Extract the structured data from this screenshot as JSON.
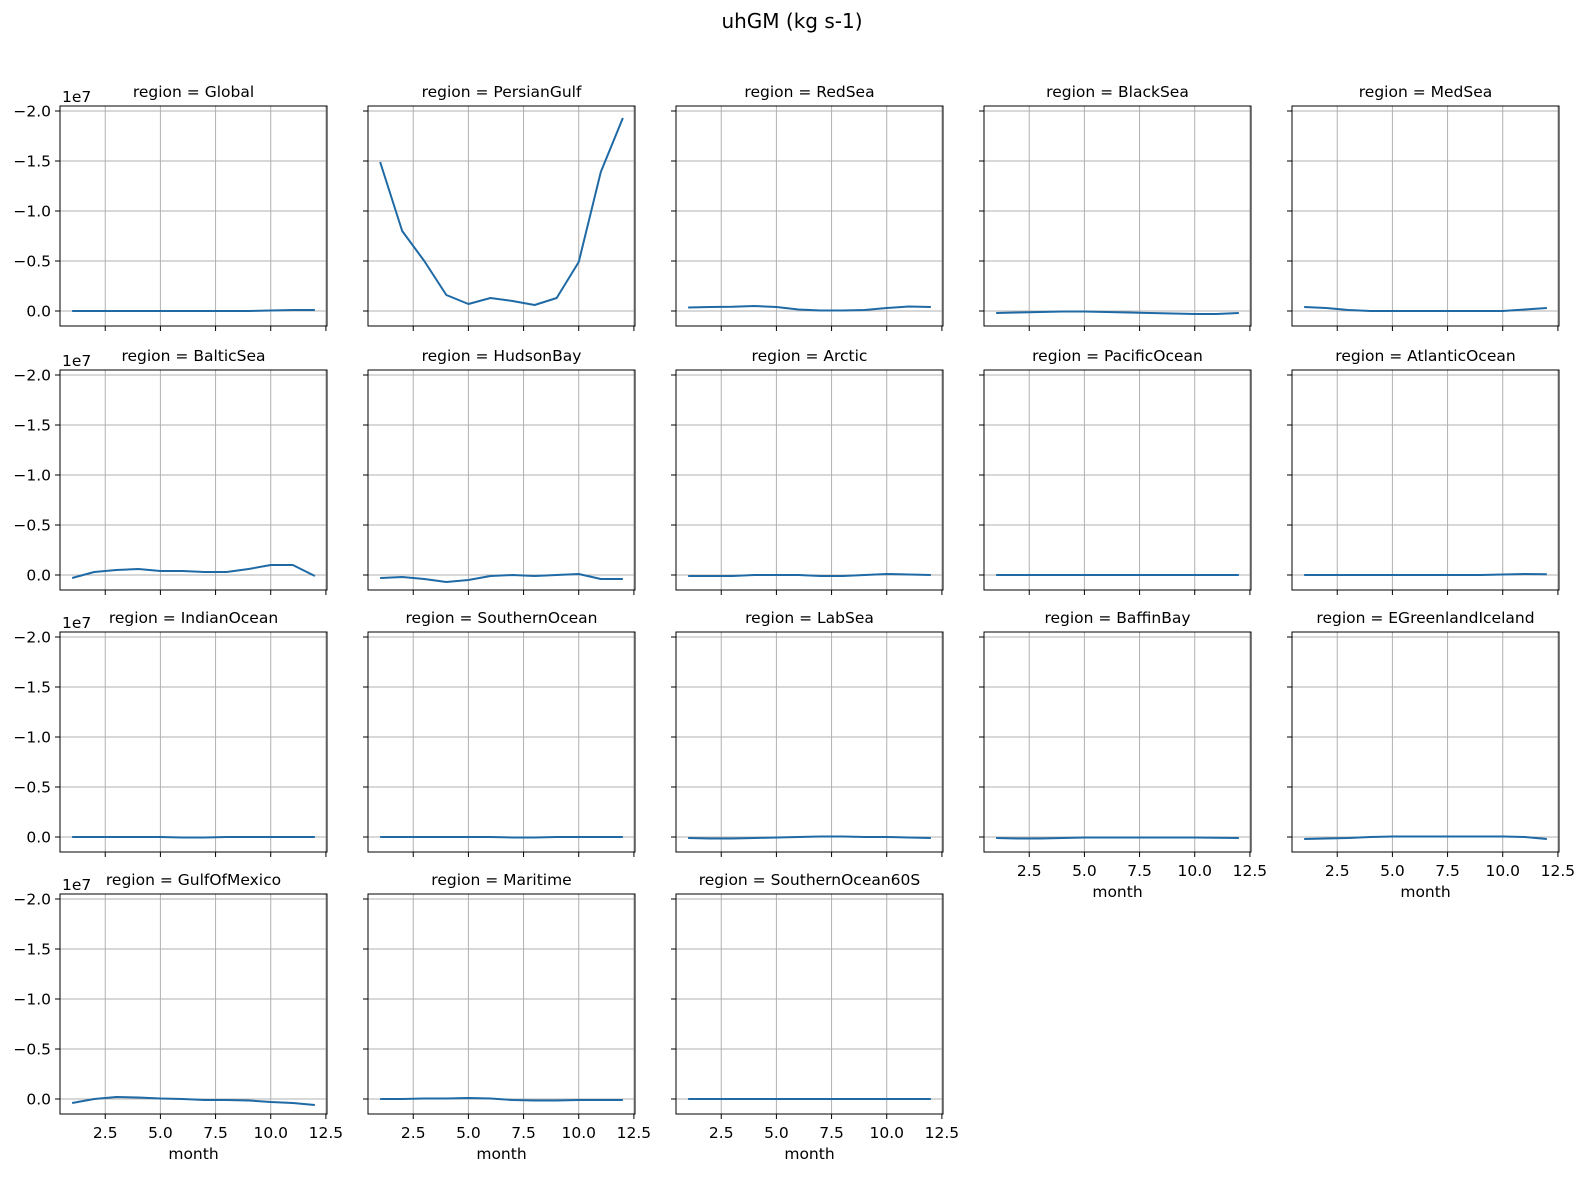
{
  "figure": {
    "title": "uhGM (kg s-1)",
    "offset_label": "1e7",
    "xlabel": "month"
  },
  "colors": {
    "line": "#1f6aa5",
    "grid": "#b0b0b0",
    "axis": "#000000",
    "background": "#ffffff"
  },
  "chart_data": {
    "type": "line",
    "layout": "small-multiples 4x5 facet grid",
    "shared_y": true,
    "shared_x": true,
    "grid": true,
    "y_inverted": true,
    "xlim": [
      0.45,
      12.55
    ],
    "ylim": [
      0.15,
      -2.05
    ],
    "xticks": [
      2.5,
      5.0,
      7.5,
      10.0,
      12.5
    ],
    "xtick_labels": [
      "2.5",
      "5.0",
      "7.5",
      "10.0",
      "12.5"
    ],
    "yticks": [
      0.0,
      -0.5,
      -1.0,
      -1.5,
      -2.0
    ],
    "ytick_labels": [
      "0.0",
      "−0.5",
      "−1.0",
      "−1.5",
      "−2.0"
    ],
    "y_scale_note": "1e7",
    "x": [
      1,
      2,
      3,
      4,
      5,
      6,
      7,
      8,
      9,
      10,
      11,
      12
    ],
    "panels": [
      {
        "title": "region = Global",
        "values": [
          0.0,
          0.0,
          0.0,
          0.0,
          0.0,
          0.0,
          0.0,
          0.0,
          0.0,
          -0.005,
          -0.01,
          -0.01
        ]
      },
      {
        "title": "region = PersianGulf",
        "values": [
          -1.49,
          -0.8,
          -0.5,
          -0.16,
          -0.07,
          -0.13,
          -0.1,
          -0.06,
          -0.13,
          -0.49,
          -1.39,
          -1.93
        ]
      },
      {
        "title": "region = RedSea",
        "values": [
          -0.035,
          -0.04,
          -0.042,
          -0.05,
          -0.04,
          -0.015,
          -0.005,
          -0.005,
          -0.01,
          -0.03,
          -0.045,
          -0.04
        ]
      },
      {
        "title": "region = BlackSea",
        "values": [
          0.02,
          0.015,
          0.01,
          0.005,
          0.005,
          0.01,
          0.015,
          0.02,
          0.025,
          0.03,
          0.03,
          0.02
        ]
      },
      {
        "title": "region = MedSea",
        "values": [
          -0.04,
          -0.03,
          -0.01,
          0.0,
          0.0,
          0.0,
          0.0,
          0.0,
          0.0,
          0.0,
          -0.015,
          -0.03
        ]
      },
      {
        "title": "region = BalticSea",
        "values": [
          0.03,
          -0.03,
          -0.05,
          -0.06,
          -0.04,
          -0.04,
          -0.03,
          -0.03,
          -0.06,
          -0.1,
          -0.1,
          0.01
        ]
      },
      {
        "title": "region = HudsonBay",
        "values": [
          0.03,
          0.02,
          0.04,
          0.07,
          0.05,
          0.01,
          0.0,
          0.01,
          0.0,
          -0.01,
          0.04,
          0.04
        ]
      },
      {
        "title": "region = Arctic",
        "values": [
          0.01,
          0.01,
          0.01,
          0.0,
          0.0,
          0.0,
          0.01,
          0.01,
          0.0,
          -0.01,
          -0.005,
          0.0
        ]
      },
      {
        "title": "region = PacificOcean",
        "values": [
          0.0,
          0.0,
          0.0,
          0.0,
          0.0,
          0.0,
          0.0,
          0.0,
          0.0,
          0.0,
          0.0,
          0.0
        ]
      },
      {
        "title": "region = AtlanticOcean",
        "values": [
          0.0,
          0.0,
          0.0,
          0.0,
          0.0,
          0.0,
          0.0,
          0.0,
          0.0,
          -0.005,
          -0.01,
          -0.008
        ]
      },
      {
        "title": "region = IndianOcean",
        "values": [
          0.0,
          0.0,
          0.0,
          0.0,
          0.0,
          0.005,
          0.005,
          0.0,
          0.0,
          0.0,
          0.0,
          0.0
        ]
      },
      {
        "title": "region = SouthernOcean",
        "values": [
          0.0,
          0.0,
          0.0,
          0.0,
          0.0,
          0.0,
          0.005,
          0.005,
          0.0,
          0.0,
          0.0,
          0.0
        ]
      },
      {
        "title": "region = LabSea",
        "values": [
          0.01,
          0.015,
          0.015,
          0.01,
          0.005,
          0.0,
          -0.005,
          -0.005,
          0.0,
          0.0,
          0.005,
          0.01
        ]
      },
      {
        "title": "region = BaffinBay",
        "values": [
          0.01,
          0.015,
          0.015,
          0.01,
          0.005,
          0.005,
          0.005,
          0.005,
          0.005,
          0.005,
          0.008,
          0.01
        ]
      },
      {
        "title": "region = EGreenlandIceland",
        "values": [
          0.02,
          0.015,
          0.01,
          0.0,
          -0.005,
          -0.005,
          -0.005,
          -0.005,
          -0.005,
          -0.005,
          0.0,
          0.02
        ]
      },
      {
        "title": "region = GulfOfMexico",
        "values": [
          0.04,
          0.0,
          -0.02,
          -0.015,
          -0.005,
          0.0,
          0.01,
          0.01,
          0.015,
          0.03,
          0.04,
          0.06
        ]
      },
      {
        "title": "region = Maritime",
        "values": [
          0.0,
          0.0,
          -0.005,
          -0.005,
          -0.01,
          -0.005,
          0.01,
          0.015,
          0.015,
          0.01,
          0.01,
          0.01
        ]
      },
      {
        "title": "region = SouthernOcean60S",
        "values": [
          0.0,
          0.0,
          0.0,
          0.0,
          0.0,
          0.0,
          0.0,
          0.0,
          0.0,
          0.0,
          0.0,
          0.0
        ]
      }
    ]
  }
}
